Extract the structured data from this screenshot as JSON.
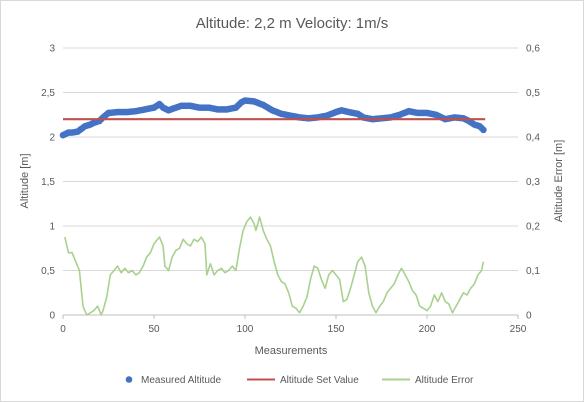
{
  "chart_data": {
    "type": "line",
    "title": "Altitude: 2,2 m Velocity: 1m/s",
    "xlabel": "Measurements",
    "ylabel": "Altitude [m]",
    "y2label": "Altitude Error [m]",
    "xlim": [
      0,
      250
    ],
    "ylim": [
      0,
      3
    ],
    "y2lim": [
      0,
      0.6
    ],
    "x_ticks": [
      "0",
      "50",
      "100",
      "150",
      "200",
      "250"
    ],
    "y_ticks": [
      "0",
      "0,5",
      "1",
      "1,5",
      "2",
      "2,5",
      "3"
    ],
    "y2_ticks": [
      "0",
      "0,1",
      "0,2",
      "0,3",
      "0,4",
      "0,5",
      "0,6"
    ],
    "grid": "horizontal",
    "legend_position": "bottom",
    "series": [
      {
        "name": "Measured Altitude",
        "kind": "scatter",
        "axis": "left",
        "color": "#4472c4",
        "points": [
          [
            0,
            2.02
          ],
          [
            3,
            2.05
          ],
          [
            5,
            2.05
          ],
          [
            8,
            2.06
          ],
          [
            10,
            2.09
          ],
          [
            12,
            2.12
          ],
          [
            15,
            2.14
          ],
          [
            17,
            2.16
          ],
          [
            20,
            2.18
          ],
          [
            22,
            2.22
          ],
          [
            25,
            2.27
          ],
          [
            30,
            2.28
          ],
          [
            35,
            2.28
          ],
          [
            40,
            2.29
          ],
          [
            45,
            2.31
          ],
          [
            50,
            2.33
          ],
          [
            53,
            2.37
          ],
          [
            55,
            2.33
          ],
          [
            58,
            2.3
          ],
          [
            62,
            2.33
          ],
          [
            65,
            2.35
          ],
          [
            70,
            2.35
          ],
          [
            75,
            2.33
          ],
          [
            80,
            2.33
          ],
          [
            85,
            2.31
          ],
          [
            90,
            2.31
          ],
          [
            95,
            2.33
          ],
          [
            98,
            2.39
          ],
          [
            100,
            2.41
          ],
          [
            105,
            2.4
          ],
          [
            110,
            2.36
          ],
          [
            115,
            2.3
          ],
          [
            120,
            2.26
          ],
          [
            125,
            2.24
          ],
          [
            130,
            2.22
          ],
          [
            135,
            2.21
          ],
          [
            140,
            2.22
          ],
          [
            145,
            2.24
          ],
          [
            150,
            2.28
          ],
          [
            153,
            2.3
          ],
          [
            157,
            2.28
          ],
          [
            162,
            2.26
          ],
          [
            165,
            2.22
          ],
          [
            170,
            2.2
          ],
          [
            175,
            2.21
          ],
          [
            180,
            2.22
          ],
          [
            185,
            2.25
          ],
          [
            190,
            2.29
          ],
          [
            195,
            2.27
          ],
          [
            200,
            2.27
          ],
          [
            205,
            2.25
          ],
          [
            210,
            2.2
          ],
          [
            215,
            2.22
          ],
          [
            220,
            2.21
          ],
          [
            223,
            2.18
          ],
          [
            226,
            2.14
          ],
          [
            229,
            2.12
          ],
          [
            231,
            2.08
          ]
        ]
      },
      {
        "name": "Altitude Set Value",
        "kind": "line",
        "axis": "left",
        "color": "#c0504d",
        "points": [
          [
            0,
            2.2
          ],
          [
            232,
            2.2
          ]
        ]
      },
      {
        "name": "Altitude Error",
        "kind": "line",
        "axis": "right",
        "color": "#a9d18e",
        "points": [
          [
            1,
            0.175
          ],
          [
            3,
            0.14
          ],
          [
            5,
            0.14
          ],
          [
            7,
            0.12
          ],
          [
            9,
            0.1
          ],
          [
            11,
            0.02
          ],
          [
            13,
            0.0
          ],
          [
            15,
            0.005
          ],
          [
            17,
            0.01
          ],
          [
            19,
            0.02
          ],
          [
            21,
            0.0
          ],
          [
            22,
            0.01
          ],
          [
            24,
            0.04
          ],
          [
            26,
            0.09
          ],
          [
            28,
            0.1
          ],
          [
            30,
            0.11
          ],
          [
            32,
            0.095
          ],
          [
            34,
            0.105
          ],
          [
            36,
            0.095
          ],
          [
            38,
            0.1
          ],
          [
            40,
            0.09
          ],
          [
            42,
            0.095
          ],
          [
            44,
            0.11
          ],
          [
            46,
            0.13
          ],
          [
            48,
            0.14
          ],
          [
            50,
            0.16
          ],
          [
            52,
            0.17
          ],
          [
            53,
            0.175
          ],
          [
            55,
            0.155
          ],
          [
            56,
            0.11
          ],
          [
            58,
            0.1
          ],
          [
            60,
            0.13
          ],
          [
            62,
            0.145
          ],
          [
            64,
            0.15
          ],
          [
            66,
            0.17
          ],
          [
            68,
            0.16
          ],
          [
            70,
            0.155
          ],
          [
            72,
            0.17
          ],
          [
            74,
            0.165
          ],
          [
            76,
            0.175
          ],
          [
            78,
            0.16
          ],
          [
            79,
            0.09
          ],
          [
            81,
            0.115
          ],
          [
            83,
            0.09
          ],
          [
            85,
            0.1
          ],
          [
            87,
            0.105
          ],
          [
            89,
            0.095
          ],
          [
            91,
            0.1
          ],
          [
            93,
            0.11
          ],
          [
            95,
            0.1
          ],
          [
            97,
            0.15
          ],
          [
            99,
            0.19
          ],
          [
            101,
            0.21
          ],
          [
            103,
            0.22
          ],
          [
            105,
            0.205
          ],
          [
            106,
            0.19
          ],
          [
            108,
            0.22
          ],
          [
            110,
            0.19
          ],
          [
            112,
            0.17
          ],
          [
            114,
            0.155
          ],
          [
            116,
            0.12
          ],
          [
            118,
            0.09
          ],
          [
            120,
            0.075
          ],
          [
            122,
            0.07
          ],
          [
            124,
            0.05
          ],
          [
            126,
            0.02
          ],
          [
            128,
            0.015
          ],
          [
            130,
            0.005
          ],
          [
            132,
            0.02
          ],
          [
            134,
            0.04
          ],
          [
            136,
            0.08
          ],
          [
            138,
            0.11
          ],
          [
            140,
            0.105
          ],
          [
            142,
            0.08
          ],
          [
            144,
            0.06
          ],
          [
            146,
            0.09
          ],
          [
            148,
            0.1
          ],
          [
            150,
            0.09
          ],
          [
            152,
            0.08
          ],
          [
            154,
            0.03
          ],
          [
            156,
            0.035
          ],
          [
            158,
            0.06
          ],
          [
            160,
            0.09
          ],
          [
            162,
            0.12
          ],
          [
            164,
            0.13
          ],
          [
            166,
            0.11
          ],
          [
            168,
            0.05
          ],
          [
            170,
            0.02
          ],
          [
            172,
            0.005
          ],
          [
            174,
            0.02
          ],
          [
            176,
            0.03
          ],
          [
            178,
            0.05
          ],
          [
            180,
            0.06
          ],
          [
            182,
            0.07
          ],
          [
            184,
            0.09
          ],
          [
            186,
            0.105
          ],
          [
            188,
            0.09
          ],
          [
            190,
            0.075
          ],
          [
            192,
            0.055
          ],
          [
            194,
            0.045
          ],
          [
            196,
            0.02
          ],
          [
            198,
            0.015
          ],
          [
            200,
            0.01
          ],
          [
            202,
            0.02
          ],
          [
            204,
            0.045
          ],
          [
            206,
            0.03
          ],
          [
            208,
            0.05
          ],
          [
            210,
            0.03
          ],
          [
            212,
            0.025
          ],
          [
            214,
            0.005
          ],
          [
            216,
            0.02
          ],
          [
            218,
            0.035
          ],
          [
            220,
            0.05
          ],
          [
            222,
            0.045
          ],
          [
            224,
            0.06
          ],
          [
            226,
            0.07
          ],
          [
            228,
            0.09
          ],
          [
            230,
            0.1
          ],
          [
            231,
            0.12
          ]
        ]
      }
    ]
  }
}
